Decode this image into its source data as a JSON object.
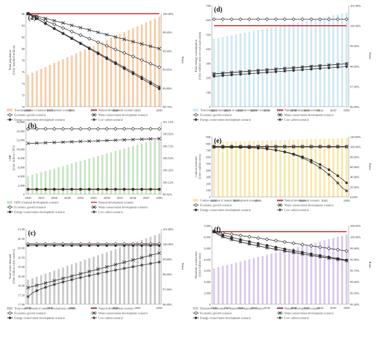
{
  "colors": {
    "line_dark": "#2b2b2b",
    "natural_red": "#c00000",
    "bars_a": "#f8cba4",
    "bars_b": "#c5e5c1",
    "bars_c": "#c8c8c8",
    "bars_d": "#cfe8f3",
    "bars_e": "#f8e7a8",
    "bars_f": "#dac8ec"
  },
  "legend_markers": {
    "natural": "red-line",
    "economic": "diamond",
    "water": "x",
    "energy": "dot",
    "lowcarbon": "star"
  },
  "chart_data": [
    {
      "id": "a",
      "panel_label": "(a)",
      "type": "bar+line",
      "ylabel": "Total population\n(Unit: hundred million)",
      "y2label": "Ratio",
      "ylim": [
        70,
        86
      ],
      "yticks": [
        "70",
        "72",
        "74",
        "76",
        "78",
        "80",
        "82",
        "84",
        "86"
      ],
      "y2lim": [
        99.75,
        100.0
      ],
      "y2ticks": [
        "99.75%",
        "99.80%",
        "99.85%",
        "99.90%",
        "99.95%",
        "100.00%"
      ],
      "xticks": [
        "2020",
        "2025",
        "2030",
        "2035",
        "2040",
        "2045",
        "2050"
      ],
      "x": [
        2020,
        2021,
        2022,
        2023,
        2024,
        2025,
        2026,
        2027,
        2028,
        2029,
        2030,
        2031,
        2032,
        2033,
        2034,
        2035,
        2036,
        2037,
        2038,
        2039,
        2040,
        2041,
        2042,
        2043,
        2044,
        2045,
        2046,
        2047,
        2048,
        2049,
        2050
      ],
      "bar_start": 75.5,
      "bar_end": 85.5,
      "bar_name": "Total population of natural development scenario",
      "legend_rows": [
        [
          "bar",
          "natural"
        ],
        [
          "economic",
          "water"
        ],
        [
          "energy",
          "lowcarbon"
        ]
      ],
      "series": [
        {
          "key": "natural",
          "name": "Natural development scenario",
          "start": 100.0,
          "end": 100.0,
          "curve": "linear"
        },
        {
          "key": "economic",
          "name": "Economic growth scenario",
          "start": 100.0,
          "end": 99.856,
          "curve": "linear"
        },
        {
          "key": "water",
          "name": "Water conservation development scenario",
          "start": 100.0,
          "end": 99.906,
          "curve": "linear"
        },
        {
          "key": "energy",
          "name": "Energy conservation development scenario",
          "start": 100.0,
          "end": 99.798,
          "curve": "linear"
        },
        {
          "key": "lowcarbon",
          "name": "Low carbon scenario",
          "start": 100.0,
          "end": 99.803,
          "curve": "linear"
        }
      ]
    },
    {
      "id": "d",
      "panel_label": "(d)",
      "type": "bar+line",
      "ylabel": "Total energy consumption\n(Unit: million tons of coal equivalent)",
      "y2label": "Ratio",
      "ylim": [
        0,
        700
      ],
      "yticks": [
        "0",
        "100",
        "200",
        "300",
        "400",
        "500",
        "600",
        "700"
      ],
      "y2lim": [
        96.0,
        101.0
      ],
      "y2ticks": [
        "96.00%",
        "97.00%",
        "98.00%",
        "99.00%",
        "100.00%",
        "101.00%"
      ],
      "xticks": [
        "2020",
        "2023",
        "2026",
        "2029",
        "2032",
        "2035",
        "2038",
        "2041",
        "2044",
        "2047",
        "2050"
      ],
      "x": [
        2020,
        2021,
        2022,
        2023,
        2024,
        2025,
        2026,
        2027,
        2028,
        2029,
        2030,
        2031,
        2032,
        2033,
        2034,
        2035,
        2036,
        2037,
        2038,
        2039,
        2040,
        2041,
        2042,
        2043,
        2044,
        2045,
        2046,
        2047,
        2048,
        2049,
        2050
      ],
      "bar_start": 470,
      "bar_end": 650,
      "bar_name": "Total energy consumption of natural development scenario",
      "legend_rows": [
        [
          "bar",
          "natural"
        ],
        [
          "economic",
          "water"
        ],
        [
          "energy",
          "lowcarbon"
        ]
      ],
      "series": [
        {
          "key": "natural",
          "name": "Natural development scenario",
          "start": 100.0,
          "end": 100.0,
          "curve": "linear"
        },
        {
          "key": "economic",
          "name": "Economic growth scenario",
          "start": 100.32,
          "end": 100.32,
          "curve": "linear"
        },
        {
          "key": "water",
          "name": "Water conservation development scenario",
          "start": 97.62,
          "end": 98.12,
          "curve": "linear"
        },
        {
          "key": "energy",
          "name": "Energy conservation development scenario",
          "start": 97.5,
          "end": 97.98,
          "curve": "linear"
        },
        {
          "key": "lowcarbon",
          "name": "Low carbon scenario",
          "start": 97.62,
          "end": 98.12,
          "curve": "linear"
        }
      ]
    },
    {
      "id": "b",
      "panel_label": "(b)",
      "type": "bar+line",
      "ylabel": "GDP\n(Unit: billion CNY)",
      "y2label": "",
      "ylim": [
        0,
        16000
      ],
      "yticks": [
        "0",
        "2,000",
        "4,000",
        "6,000",
        "8,000",
        "10,000",
        "12,000",
        "14,000",
        "16,000"
      ],
      "y2lim": [
        99.92,
        101.12
      ],
      "y2ticks": [
        "99.92%",
        "100.12%",
        "100.32%",
        "100.52%",
        "100.72%",
        "100.92%",
        "101.12%"
      ],
      "xticks": [
        "2020",
        "2023",
        "2026",
        "2029",
        "2032",
        "2035",
        "2038",
        "2041",
        "2044",
        "2047",
        "2050"
      ],
      "x": [
        2020,
        2021,
        2022,
        2023,
        2024,
        2025,
        2026,
        2027,
        2028,
        2029,
        2030,
        2031,
        2032,
        2033,
        2034,
        2035,
        2036,
        2037,
        2038,
        2039,
        2040,
        2041,
        2042,
        2043,
        2044,
        2045,
        2046,
        2047,
        2048,
        2049,
        2050
      ],
      "bar_start": 4000,
      "bar_end": 12300,
      "bar_name": "GDP of natural development scenario",
      "legend_rows": [
        [
          "bar",
          "natural"
        ],
        [
          "economic",
          "water"
        ],
        [
          "energy",
          "lowcarbon"
        ]
      ],
      "series": [
        {
          "key": "natural",
          "name": "Natural development scenario",
          "start": 100.0,
          "end": 100.0,
          "curve": "linear"
        },
        {
          "key": "economic",
          "name": "Economic growth scenario",
          "start": 101.0,
          "end": 101.0,
          "curve": "linear"
        },
        {
          "key": "water",
          "name": "Water conservation development scenario",
          "start": 100.76,
          "end": 100.84,
          "curve": "linear"
        },
        {
          "key": "energy",
          "name": "Energy conservation development scenario",
          "start": 100.0,
          "end": 100.0,
          "curve": "linear"
        },
        {
          "key": "lowcarbon",
          "name": "Low carbon scenario",
          "start": 100.0,
          "end": 100.0,
          "curve": "linear"
        }
      ]
    },
    {
      "id": "e",
      "panel_label": "(e)",
      "type": "bar+line",
      "ylabel": "Carbon emission\n(Unit: million tons)",
      "y2label": "Ratio",
      "ylim": [
        0,
        900
      ],
      "yticks": [
        "0",
        "100",
        "200",
        "300",
        "400",
        "500",
        "600",
        "700",
        "800",
        "900"
      ],
      "y2lim": [
        0,
        120
      ],
      "y2ticks": [
        "0.00%",
        "20.00%",
        "40.00%",
        "60.00%",
        "80.00%",
        "100.00%",
        "120.00%"
      ],
      "xticks": [
        "2020",
        "2025",
        "2030",
        "2035",
        "2040",
        "2045",
        "2050"
      ],
      "x": [
        2020,
        2021,
        2022,
        2023,
        2024,
        2025,
        2026,
        2027,
        2028,
        2029,
        2030,
        2031,
        2032,
        2033,
        2034,
        2035,
        2036,
        2037,
        2038,
        2039,
        2040,
        2041,
        2042,
        2043,
        2044,
        2045,
        2046,
        2047,
        2048,
        2049,
        2050
      ],
      "bar_start": 820,
      "bar_end": 880,
      "bar_name": "Carbon emission of natural development scenario",
      "legend_rows": [
        [
          "bar",
          "natural"
        ],
        [
          "economic",
          "water"
        ],
        [
          "energy",
          "lowcarbon"
        ]
      ],
      "series": [
        {
          "key": "natural",
          "name": "Natural development scenario",
          "start": 100.0,
          "end": 100.0,
          "curve": "linear"
        },
        {
          "key": "economic",
          "name": "Economic growth scenario",
          "start": 100.5,
          "end": 100.5,
          "curve": "linear"
        },
        {
          "key": "water",
          "name": "Water conservation development scenario",
          "start": 100.0,
          "end": 100.0,
          "curve": "linear"
        },
        {
          "key": "energy",
          "name": "Energy conservation development scenario",
          "start": 99.5,
          "end": 28.0,
          "curve": "drop"
        },
        {
          "key": "lowcarbon",
          "name": "Low carbon scenario",
          "start": 99.0,
          "end": 12.0,
          "curve": "drop2"
        }
      ]
    },
    {
      "id": "c",
      "panel_label": "(c)",
      "type": "bar+line",
      "ylabel": "Total water demand\n(Unit: billion cubic meters)",
      "y2label": "Ratio",
      "ylim": [
        17.0,
        21.0
      ],
      "yticks": [
        "17.00",
        "17.50",
        "18.00",
        "18.50",
        "19.00",
        "19.50",
        "20.00",
        "20.50",
        "21.00"
      ],
      "y2lim": [
        96.0,
        101.0
      ],
      "y2ticks": [
        "96.00%",
        "97.00%",
        "98.00%",
        "99.00%",
        "100.00%",
        "101.00%"
      ],
      "xticks": [
        "2020",
        "2025",
        "2030",
        "2035",
        "2040",
        "2045",
        "2050"
      ],
      "x": [
        2020,
        2021,
        2022,
        2023,
        2024,
        2025,
        2026,
        2027,
        2028,
        2029,
        2030,
        2031,
        2032,
        2033,
        2034,
        2035,
        2036,
        2037,
        2038,
        2039,
        2040,
        2041,
        2042,
        2043,
        2044,
        2045,
        2046,
        2047,
        2048,
        2049,
        2050
      ],
      "bar_start": 18.3,
      "bar_end": 20.75,
      "bar_name": "Total water demand of natural development scenario",
      "legend_rows": [
        [
          "bar",
          "natural"
        ],
        [
          "economic",
          "water"
        ],
        [
          "energy",
          "lowcarbon"
        ]
      ],
      "series": [
        {
          "key": "natural",
          "name": "Natural development scenario",
          "start": 100.0,
          "end": 100.0,
          "curve": "linear"
        },
        {
          "key": "economic",
          "name": "Economic growth scenario",
          "start": 100.0,
          "end": 100.0,
          "curve": "linear"
        },
        {
          "key": "water",
          "name": "Water conservation development scenario",
          "start": 97.1,
          "end": 99.4,
          "curve": "linear"
        },
        {
          "key": "energy",
          "name": "Energy conservation development scenario",
          "start": 99.9,
          "end": 99.9,
          "curve": "linear"
        },
        {
          "key": "lowcarbon",
          "name": "Low carbon scenario",
          "start": 96.5,
          "end": 98.8,
          "curve": "concave"
        }
      ]
    },
    {
      "id": "f",
      "panel_label": "(f)",
      "type": "bar+line",
      "ylabel": "Domestic wastewater\n(Unit: billion tons)",
      "y2label": "Ratio",
      "ylim": [
        0,
        7000
      ],
      "yticks": [
        "0",
        "1,000",
        "2,000",
        "3,000",
        "4,000",
        "5,000",
        "6,000",
        "7,000"
      ],
      "y2lim": [
        99.4,
        100.05
      ],
      "y2ticks": [
        "99.40%",
        "99.50%",
        "99.60%",
        "99.70%",
        "99.80%",
        "99.90%",
        "100.00%",
        "100.05%"
      ],
      "xticks": [
        "2020",
        "2023",
        "2026",
        "2029",
        "2032",
        "2035",
        "2038",
        "2041",
        "2044",
        "2047",
        "2050"
      ],
      "x": [
        2020,
        2021,
        2022,
        2023,
        2024,
        2025,
        2026,
        2027,
        2028,
        2029,
        2030,
        2031,
        2032,
        2033,
        2034,
        2035,
        2036,
        2037,
        2038,
        2039,
        2040,
        2041,
        2042,
        2043,
        2044,
        2045,
        2046,
        2047,
        2048,
        2049,
        2050
      ],
      "bar_start": 3200,
      "bar_end": 6200,
      "bar_name": "Domestic wastewater of natural development scenario",
      "legend_rows": [
        [
          "bar",
          "natural"
        ],
        [
          "economic",
          "water"
        ],
        [
          "energy",
          "lowcarbon"
        ]
      ],
      "series": [
        {
          "key": "natural",
          "name": "Natural development scenario",
          "start": 100.0,
          "end": 100.0,
          "curve": "linear"
        },
        {
          "key": "economic",
          "name": "Economic growth scenario",
          "start": 100.0,
          "end": 99.84,
          "curve": "linear"
        },
        {
          "key": "water",
          "name": "Water conservation development scenario",
          "start": 100.0,
          "end": 99.76,
          "curve": "concave"
        },
        {
          "key": "energy",
          "name": "Energy conservation development scenario",
          "start": 100.0,
          "end": 99.765,
          "curve": "concave2"
        },
        {
          "key": "lowcarbon",
          "name": "Low carbon scenario",
          "start": 100.0,
          "end": 99.76,
          "curve": "concave"
        }
      ]
    }
  ]
}
